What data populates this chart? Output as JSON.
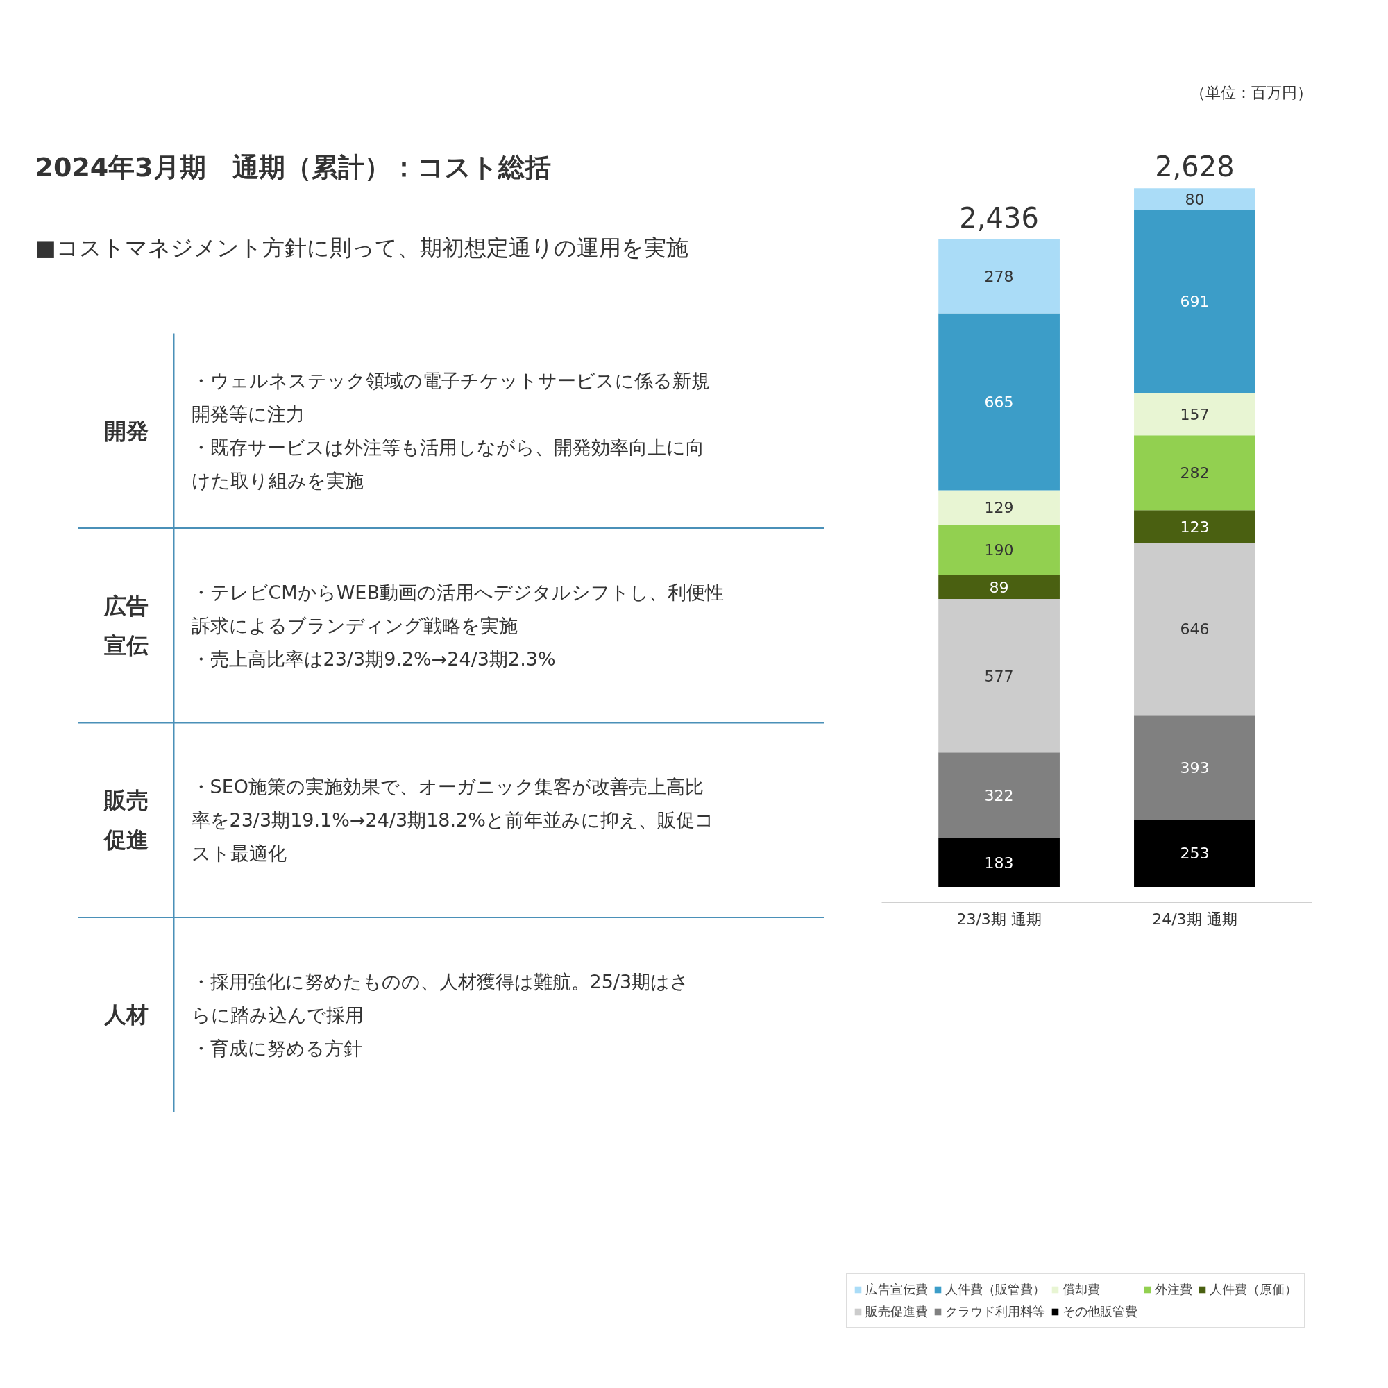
{
  "chart_data": [
    {
      "type": "other",
      "title": "2024年3月期　通期（累計）：コスト総括",
      "subtitle": "■コストマネジメント方針に則って、期初想定通りの運用を実施",
      "annotations": [
        "開発",
        "・ウェルネステック領域の電子チケットサービスに係る新規開発等に注力・既存サービスは外注等も活用しながら、開発効率向上に向けた取り組みを実施",
        "広告宣伝",
        "・テレビCMからWEB動画の活用へデジタルシフトし、利便性訴求によるブランディング戦略を実施・売上高比率は23/3期9.2%→24/3期2.3%",
        "販売促進",
        "・SEO施策の実施効果で、オーガニック集客が改善売上高比率を23/3期19.1%→24/3期18.2%と前年並みに抑え、販促コスト最適化",
        "人材",
        "・採用強化に努めたものの、人材獲得は難航。25/3期はさらに踏み込んで採用・育成に努める方針"
      ]
    },
    {
      "type": "bar",
      "stacked": true,
      "data_labels": true,
      "legend": "bottom",
      "categories": [
        "23/3期 通期",
        "24/3期 通期"
      ],
      "totals": [
        "2,436",
        "2,628"
      ],
      "annotations": [
        "（単位：百万円）"
      ],
      "series": [
        {
          "name": "その他販管費",
          "color": "#000000",
          "values": [
            183,
            253
          ]
        },
        {
          "name": "クラウド利用料等",
          "color": "#808080",
          "values": [
            322,
            393
          ]
        },
        {
          "name": "販売促進費",
          "color": "#cccccc",
          "values": [
            577,
            646
          ]
        },
        {
          "name": "人件費（原価）",
          "color": "#4a6011",
          "values": [
            89,
            123
          ]
        },
        {
          "name": "外注費",
          "color": "#92d050",
          "values": [
            190,
            282
          ]
        },
        {
          "name": "償却費",
          "color": "#e8f5d3",
          "values": [
            129,
            157
          ]
        },
        {
          "name": "人件費（販管費）",
          "color": "#3c9dc8",
          "values": [
            665,
            691
          ]
        },
        {
          "name": "広告宣伝費",
          "color": "#aadcf7",
          "values": [
            278,
            80
          ]
        }
      ]
    }
  ]
}
